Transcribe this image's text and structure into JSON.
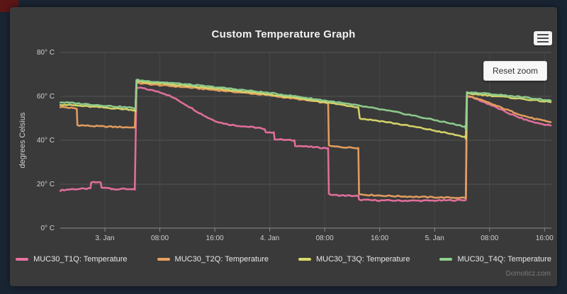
{
  "ui": {
    "reset_zoom": "Reset zoom",
    "watermark": "Domoticz.com"
  },
  "chart_data": {
    "type": "line",
    "title": "Custom Temperature Graph",
    "xlabel": "",
    "ylabel": "degrees Celsius",
    "ylim": [
      0,
      80
    ],
    "xlim_hours": [
      -6.5,
      65
    ],
    "x_axis_note": "x values are hours relative to 3. Jan 00:00",
    "grid": true,
    "legend_position": "bottom",
    "y_ticks": [
      {
        "v": 0,
        "label": "0° C"
      },
      {
        "v": 20,
        "label": "20° C"
      },
      {
        "v": 40,
        "label": "40° C"
      },
      {
        "v": 60,
        "label": "60° C"
      },
      {
        "v": 80,
        "label": "80° C"
      }
    ],
    "x_ticks": [
      {
        "t": 0,
        "label": "3. Jan"
      },
      {
        "t": 8,
        "label": "08:00"
      },
      {
        "t": 16,
        "label": "16:00"
      },
      {
        "t": 24,
        "label": "4. Jan"
      },
      {
        "t": 32,
        "label": "08:00"
      },
      {
        "t": 40,
        "label": "16:00"
      },
      {
        "t": 48,
        "label": "5. Jan"
      },
      {
        "t": 56,
        "label": "08:00"
      },
      {
        "t": 64,
        "label": "16:00"
      }
    ],
    "series": [
      {
        "name": "MUC30_T1Q: Temperature",
        "color": "#e8719f",
        "points": [
          [
            -6.5,
            17.2
          ],
          [
            -5,
            17.7
          ],
          [
            -3,
            17.9
          ],
          [
            -2.1,
            18.0
          ],
          [
            -2.0,
            20.8
          ],
          [
            -0.6,
            20.9
          ],
          [
            -0.5,
            18.3
          ],
          [
            0.8,
            18.3
          ],
          [
            0.9,
            17.8
          ],
          [
            4.2,
            17.8
          ],
          [
            4.35,
            17.5
          ],
          [
            4.6,
            63.8
          ],
          [
            5.2,
            63.9
          ],
          [
            6,
            63.3
          ],
          [
            8,
            62.0
          ],
          [
            9,
            60.8
          ],
          [
            10,
            59.3
          ],
          [
            11,
            57.6
          ],
          [
            12,
            55.8
          ],
          [
            13,
            53.9
          ],
          [
            14,
            52.0
          ],
          [
            15,
            50.3
          ],
          [
            16,
            48.9
          ],
          [
            17,
            47.9
          ],
          [
            18,
            47.2
          ],
          [
            19.5,
            46.6
          ],
          [
            21,
            46.1
          ],
          [
            22.5,
            45.6
          ],
          [
            23.3,
            44.7
          ],
          [
            23.4,
            43.9
          ],
          [
            24.6,
            43.4
          ],
          [
            24.7,
            40.6
          ],
          [
            26,
            40.2
          ],
          [
            27.6,
            39.9
          ],
          [
            27.7,
            37.6
          ],
          [
            29,
            37.2
          ],
          [
            31,
            36.7
          ],
          [
            32.5,
            36.4
          ],
          [
            32.6,
            15.4
          ],
          [
            33.5,
            15.0
          ],
          [
            35,
            14.8
          ],
          [
            36.9,
            14.6
          ],
          [
            37.0,
            12.9
          ],
          [
            39,
            12.7
          ],
          [
            43,
            12.5
          ],
          [
            47,
            12.5
          ],
          [
            51,
            12.7
          ],
          [
            52.55,
            12.8
          ],
          [
            52.7,
            59.8
          ],
          [
            53.2,
            59.9
          ],
          [
            54,
            58.9
          ],
          [
            55,
            57.6
          ],
          [
            56,
            56.3
          ],
          [
            57,
            54.9
          ],
          [
            58,
            53.4
          ],
          [
            59,
            52.0
          ],
          [
            60,
            50.7
          ],
          [
            61,
            49.6
          ],
          [
            62,
            48.6
          ],
          [
            63,
            47.8
          ],
          [
            64,
            47.2
          ],
          [
            64.9,
            46.7
          ]
        ]
      },
      {
        "name": "MUC30_T2Q: Temperature",
        "color": "#e9a05f",
        "points": [
          [
            -6.5,
            55.2
          ],
          [
            -5.5,
            54.9
          ],
          [
            -4.1,
            54.4
          ],
          [
            -4.0,
            46.9
          ],
          [
            -2.5,
            46.6
          ],
          [
            -0.5,
            46.3
          ],
          [
            1.5,
            46.1
          ],
          [
            3.5,
            45.9
          ],
          [
            4.35,
            45.8
          ],
          [
            4.6,
            66.1
          ],
          [
            6,
            65.7
          ],
          [
            8,
            65.1
          ],
          [
            10,
            64.6
          ],
          [
            12,
            64.1
          ],
          [
            14,
            63.5
          ],
          [
            16,
            62.9
          ],
          [
            18,
            62.3
          ],
          [
            20,
            61.7
          ],
          [
            22,
            61.1
          ],
          [
            24,
            60.4
          ],
          [
            26,
            59.6
          ],
          [
            28,
            58.8
          ],
          [
            30,
            57.9
          ],
          [
            32,
            57.1
          ],
          [
            32.5,
            56.9
          ],
          [
            32.6,
            37.4
          ],
          [
            33.5,
            37.1
          ],
          [
            35,
            36.8
          ],
          [
            36.9,
            36.5
          ],
          [
            37.0,
            15.4
          ],
          [
            38.5,
            15.1
          ],
          [
            41,
            14.7
          ],
          [
            44,
            14.4
          ],
          [
            47,
            14.1
          ],
          [
            50,
            13.9
          ],
          [
            52.55,
            13.8
          ],
          [
            52.7,
            60.2
          ],
          [
            53.5,
            59.6
          ],
          [
            55,
            58.0
          ],
          [
            56.5,
            56.3
          ],
          [
            58,
            54.5
          ],
          [
            59.5,
            52.8
          ],
          [
            61,
            51.1
          ],
          [
            62.5,
            49.8
          ],
          [
            64,
            48.8
          ],
          [
            64.9,
            48.3
          ]
        ]
      },
      {
        "name": "MUC30_T3Q: Temperature",
        "color": "#d9d96a",
        "points": [
          [
            -6.5,
            56.3
          ],
          [
            -4.5,
            55.9
          ],
          [
            -2.5,
            55.4
          ],
          [
            -0.5,
            55.0
          ],
          [
            1.5,
            54.5
          ],
          [
            3.5,
            54.0
          ],
          [
            4.3,
            53.7
          ],
          [
            4.45,
            53.2
          ],
          [
            4.6,
            66.8
          ],
          [
            6,
            66.4
          ],
          [
            8,
            65.9
          ],
          [
            10,
            65.3
          ],
          [
            12,
            64.7
          ],
          [
            14,
            64.1
          ],
          [
            16,
            63.5
          ],
          [
            18,
            62.8
          ],
          [
            20,
            62.2
          ],
          [
            22,
            61.5
          ],
          [
            24,
            60.8
          ],
          [
            26,
            60.0
          ],
          [
            28,
            59.2
          ],
          [
            30,
            58.3
          ],
          [
            32,
            57.4
          ],
          [
            34,
            56.4
          ],
          [
            36,
            55.5
          ],
          [
            36.9,
            55.1
          ],
          [
            37.1,
            49.9
          ],
          [
            38,
            49.6
          ],
          [
            40,
            48.8
          ],
          [
            42,
            47.8
          ],
          [
            44,
            46.7
          ],
          [
            46,
            45.6
          ],
          [
            48,
            44.4
          ],
          [
            50,
            43.1
          ],
          [
            52,
            41.8
          ],
          [
            52.4,
            41.5
          ],
          [
            52.55,
            40.7
          ],
          [
            52.7,
            61.3
          ],
          [
            54,
            61.0
          ],
          [
            56,
            60.4
          ],
          [
            58,
            59.8
          ],
          [
            60,
            59.1
          ],
          [
            62,
            58.4
          ],
          [
            64,
            57.7
          ],
          [
            64.9,
            57.4
          ]
        ]
      },
      {
        "name": "MUC30_T4Q: Temperature",
        "color": "#8fd08f",
        "points": [
          [
            -6.5,
            57.3
          ],
          [
            -4.5,
            56.9
          ],
          [
            -2.5,
            56.4
          ],
          [
            -0.5,
            55.9
          ],
          [
            1.5,
            55.4
          ],
          [
            3.5,
            54.9
          ],
          [
            4.3,
            54.6
          ],
          [
            4.45,
            54.1
          ],
          [
            4.6,
            67.4
          ],
          [
            6,
            67.0
          ],
          [
            8,
            66.5
          ],
          [
            10,
            66.0
          ],
          [
            12,
            65.4
          ],
          [
            14,
            64.8
          ],
          [
            16,
            64.2
          ],
          [
            18,
            63.6
          ],
          [
            20,
            62.9
          ],
          [
            22,
            62.2
          ],
          [
            24,
            61.5
          ],
          [
            26,
            60.7
          ],
          [
            28,
            59.9
          ],
          [
            30,
            59.0
          ],
          [
            32,
            58.1
          ],
          [
            34,
            57.2
          ],
          [
            36,
            56.2
          ],
          [
            38,
            55.2
          ],
          [
            40,
            54.1
          ],
          [
            42,
            53.0
          ],
          [
            44,
            51.8
          ],
          [
            46,
            50.5
          ],
          [
            48,
            49.2
          ],
          [
            50,
            47.9
          ],
          [
            52,
            46.5
          ],
          [
            52.4,
            46.2
          ],
          [
            52.55,
            45.0
          ],
          [
            52.7,
            61.9
          ],
          [
            54,
            61.6
          ],
          [
            56,
            61.1
          ],
          [
            58,
            60.5
          ],
          [
            60,
            59.9
          ],
          [
            62,
            59.2
          ],
          [
            64,
            58.5
          ],
          [
            64.9,
            58.1
          ]
        ]
      }
    ],
    "style": {
      "plot_bg": "#3a3a3a",
      "grid_color_h": "#545454",
      "grid_color_v": "rgba(255,255,255,0.07)",
      "axis_line_color": "#8a8a8a",
      "tick_label_color": "#cfcfd2"
    }
  }
}
